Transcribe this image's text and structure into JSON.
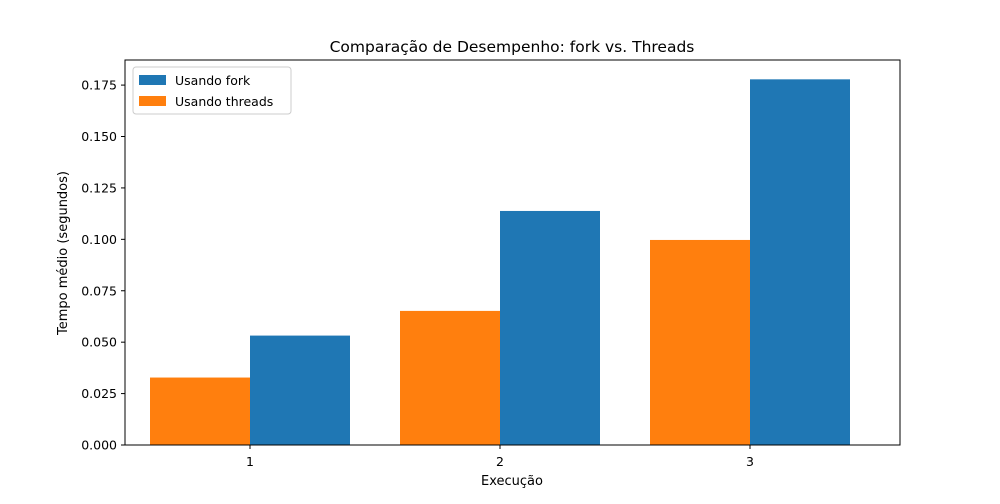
{
  "chart_data": {
    "type": "bar",
    "title": "Comparação de Desempenho: fork vs. Threads",
    "xlabel": "Execução",
    "ylabel": "Tempo médio (segundos)",
    "categories": [
      "1",
      "2",
      "3"
    ],
    "ylim": [
      0,
      0.1872
    ],
    "yticks": [
      "0.000",
      "0.025",
      "0.050",
      "0.075",
      "0.100",
      "0.125",
      "0.150",
      "0.175"
    ],
    "grid": false,
    "legend_position": "top-left",
    "series": [
      {
        "name": "Usando fork",
        "color": "#1f77b4",
        "values": [
          0.0532,
          0.1138,
          0.1778
        ]
      },
      {
        "name": "Usando threads",
        "color": "#ff7f0e",
        "values": [
          0.0328,
          0.0652,
          0.0997
        ]
      }
    ]
  }
}
